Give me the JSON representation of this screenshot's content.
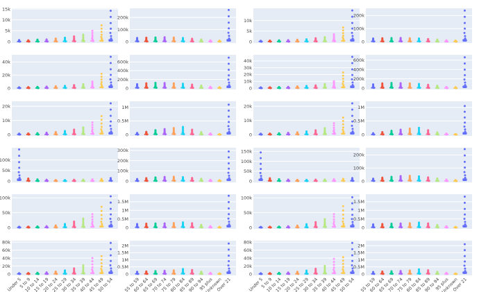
{
  "chart_data": {
    "type": "scatter",
    "grid": true,
    "layout_grid": {
      "rows": 6,
      "cols": 4
    },
    "colors": [
      "#636efa",
      "#EF553B",
      "#00cc96",
      "#ab63fa",
      "#FFA15A",
      "#19d3f3",
      "#FF6692",
      "#B6E880",
      "#FF97FF",
      "#FECB52"
    ],
    "x_groups": {
      "young": [
        "Under 5",
        "5 to 9",
        "10 to 14",
        "15 to 19",
        "20 to 24",
        "25 to 29",
        "30 to 34",
        "35 to 39",
        "40 to 44",
        "45 to 49",
        "50 to 54"
      ],
      "old": [
        "55 to 59",
        "60 to 64",
        "65 to 69",
        "70 to 74",
        "75 to 79",
        "80 to 84",
        "85 to 89",
        "90 to 94",
        "95 plus",
        "Unknown",
        "Over 21"
      ]
    },
    "panels": [
      {
        "group": "young",
        "ymax": 15000,
        "ticks": [
          {
            "v": 0,
            "t": "0"
          },
          {
            "v": 5000,
            "t": "5k"
          },
          {
            "v": 10000,
            "t": "10k"
          },
          {
            "v": 15000,
            "t": "15k"
          }
        ],
        "maxes": [
          700,
          600,
          900,
          1000,
          1400,
          1800,
          2400,
          3200,
          5000,
          7500,
          14200
        ]
      },
      {
        "group": "old",
        "ymax": 270000,
        "ticks": [
          {
            "v": 0,
            "t": "0"
          },
          {
            "v": 100000,
            "t": "100k"
          },
          {
            "v": 200000,
            "t": "200k"
          }
        ],
        "maxes": [
          30000,
          32000,
          34000,
          36000,
          34000,
          30000,
          24000,
          18000,
          10000,
          8000,
          262000
        ]
      },
      {
        "group": "young",
        "ymax": 15500,
        "ticks": [
          {
            "v": 0,
            "t": "0"
          },
          {
            "v": 5000,
            "t": "5k"
          },
          {
            "v": 10000,
            "t": "10k"
          }
        ],
        "maxes": [
          400,
          500,
          600,
          700,
          900,
          1100,
          1600,
          2100,
          3500,
          6700,
          14800
        ]
      },
      {
        "group": "old",
        "ymax": 250000,
        "ticks": [
          {
            "v": 0,
            "t": "0"
          },
          {
            "v": 100000,
            "t": "100k"
          },
          {
            "v": 200000,
            "t": "200k"
          }
        ],
        "maxes": [
          24000,
          26000,
          27000,
          28000,
          26000,
          24000,
          20000,
          16000,
          10000,
          8000,
          238000
        ]
      },
      {
        "group": "young",
        "ymax": 50000,
        "ticks": [
          {
            "v": 0,
            "t": "0"
          },
          {
            "v": 20000,
            "t": "20k"
          },
          {
            "v": 40000,
            "t": "40k"
          }
        ],
        "maxes": [
          1200,
          1500,
          1800,
          2200,
          2800,
          3400,
          4500,
          6000,
          10000,
          22000,
          48000
        ]
      },
      {
        "group": "old",
        "ymax": 750000,
        "ticks": [
          {
            "v": 0,
            "t": "0"
          },
          {
            "v": 200000,
            "t": "200k"
          },
          {
            "v": 400000,
            "t": "400k"
          },
          {
            "v": 600000,
            "t": "600k"
          }
        ],
        "maxes": [
          90000,
          110000,
          120000,
          115000,
          110000,
          100000,
          80000,
          60000,
          30000,
          20000,
          700000
        ]
      },
      {
        "group": "young",
        "ymax": 48000,
        "ticks": [
          {
            "v": 0,
            "t": "0"
          },
          {
            "v": 10000,
            "t": "10k"
          },
          {
            "v": 20000,
            "t": "20k"
          },
          {
            "v": 30000,
            "t": "30k"
          },
          {
            "v": 40000,
            "t": "40k"
          }
        ],
        "maxes": [
          1000,
          1200,
          1500,
          1800,
          2500,
          3200,
          4000,
          6000,
          10000,
          23000,
          46000
        ]
      },
      {
        "group": "old",
        "ymax": 700000,
        "ticks": [
          {
            "v": 0,
            "t": "0"
          },
          {
            "v": 200000,
            "t": "200k"
          },
          {
            "v": 400000,
            "t": "400k"
          },
          {
            "v": 600000,
            "t": "600k"
          }
        ],
        "maxes": [
          80000,
          100000,
          110000,
          105000,
          100000,
          90000,
          70000,
          50000,
          25000,
          18000,
          660000
        ]
      },
      {
        "group": "young",
        "ymax": 23000,
        "ticks": [
          {
            "v": 0,
            "t": "0"
          },
          {
            "v": 10000,
            "t": "10k"
          },
          {
            "v": 20000,
            "t": "20k"
          }
        ],
        "maxes": [
          700,
          800,
          1000,
          1300,
          1800,
          2500,
          3500,
          5000,
          8500,
          13000,
          22000
        ]
      },
      {
        "group": "old",
        "ymax": 1200000,
        "ticks": [
          {
            "v": 0,
            "t": "0"
          },
          {
            "v": 500000,
            "t": "0.5M"
          },
          {
            "v": 1000000,
            "t": "1M"
          }
        ],
        "maxes": [
          60000,
          100000,
          160000,
          200000,
          240000,
          280000,
          180000,
          90000,
          40000,
          20000,
          1100000
        ]
      },
      {
        "group": "young",
        "ymax": 23000,
        "ticks": [
          {
            "v": 0,
            "t": "0"
          },
          {
            "v": 10000,
            "t": "10k"
          },
          {
            "v": 20000,
            "t": "20k"
          }
        ],
        "maxes": [
          600,
          700,
          900,
          1200,
          1600,
          2200,
          3000,
          4500,
          8000,
          12000,
          22000
        ]
      },
      {
        "group": "old",
        "ymax": 1200000,
        "ticks": [
          {
            "v": 0,
            "t": "0"
          },
          {
            "v": 500000,
            "t": "0.5M"
          },
          {
            "v": 1000000,
            "t": "1M"
          }
        ],
        "maxes": [
          50000,
          90000,
          140000,
          180000,
          220000,
          250000,
          160000,
          80000,
          35000,
          20000,
          1050000
        ]
      },
      {
        "group": "young",
        "ymax": 155000,
        "ticks": [
          {
            "v": 0,
            "t": "0"
          },
          {
            "v": 50000,
            "t": "50k"
          },
          {
            "v": 100000,
            "t": "100k"
          }
        ],
        "maxes": [
          150000,
          12000,
          8000,
          6000,
          5000,
          5000,
          6000,
          7000,
          8000,
          10000,
          14000
        ]
      },
      {
        "group": "old",
        "ymax": 320000,
        "ticks": [
          {
            "v": 0,
            "t": "0"
          },
          {
            "v": 100000,
            "t": "100k"
          },
          {
            "v": 200000,
            "t": "200k"
          },
          {
            "v": 300000,
            "t": "300k"
          }
        ],
        "maxes": [
          20000,
          28000,
          35000,
          40000,
          42000,
          38000,
          30000,
          22000,
          12000,
          8000,
          290000
        ]
      },
      {
        "group": "young",
        "ymax": 165000,
        "ticks": [
          {
            "v": 0,
            "t": "0"
          },
          {
            "v": 50000,
            "t": "50k"
          },
          {
            "v": 100000,
            "t": "100k"
          },
          {
            "v": 150000,
            "t": "150k"
          }
        ],
        "maxes": [
          145000,
          14000,
          9000,
          7000,
          6000,
          6000,
          7000,
          8000,
          9000,
          11000,
          15000
        ]
      },
      {
        "group": "old",
        "ymax": 250000,
        "ticks": [
          {
            "v": 0,
            "t": "0"
          },
          {
            "v": 100000,
            "t": "100k"
          },
          {
            "v": 200000,
            "t": "200k"
          }
        ],
        "maxes": [
          18000,
          26000,
          32000,
          38000,
          40000,
          36000,
          28000,
          20000,
          11000,
          7000,
          245000
        ]
      },
      {
        "group": "young",
        "ymax": 110000,
        "ticks": [
          {
            "v": 0,
            "t": "0"
          },
          {
            "v": 50000,
            "t": "50k"
          },
          {
            "v": 100000,
            "t": "100k"
          }
        ],
        "maxes": [
          2500,
          3000,
          3500,
          4500,
          7000,
          12000,
          20000,
          30000,
          45000,
          70000,
          105000
        ]
      },
      {
        "group": "old",
        "ymax": 1900000,
        "ticks": [
          {
            "v": 0,
            "t": "0"
          },
          {
            "v": 500000,
            "t": "0.5M"
          },
          {
            "v": 1000000,
            "t": "1M"
          },
          {
            "v": 1500000,
            "t": "1.5M"
          }
        ],
        "maxes": [
          200000,
          220000,
          230000,
          240000,
          260000,
          300000,
          250000,
          150000,
          80000,
          40000,
          1850000
        ]
      },
      {
        "group": "young",
        "ymax": 110000,
        "ticks": [
          {
            "v": 0,
            "t": "0"
          },
          {
            "v": 50000,
            "t": "50k"
          },
          {
            "v": 100000,
            "t": "100k"
          }
        ],
        "maxes": [
          2000,
          2500,
          3000,
          4000,
          6500,
          11000,
          18000,
          28000,
          45000,
          72000,
          102000
        ]
      },
      {
        "group": "old",
        "ymax": 1900000,
        "ticks": [
          {
            "v": 0,
            "t": "0"
          },
          {
            "v": 500000,
            "t": "0.5M"
          },
          {
            "v": 1000000,
            "t": "1M"
          },
          {
            "v": 1500000,
            "t": "1.5M"
          }
        ],
        "maxes": [
          180000,
          200000,
          220000,
          230000,
          250000,
          290000,
          240000,
          140000,
          70000,
          35000,
          1800000
        ]
      },
      {
        "group": "young",
        "ymax": 82000,
        "ticks": [
          {
            "v": 0,
            "t": "0"
          },
          {
            "v": 20000,
            "t": "20k"
          },
          {
            "v": 40000,
            "t": "40k"
          },
          {
            "v": 60000,
            "t": "60k"
          },
          {
            "v": 80000,
            "t": "80k"
          }
        ],
        "maxes": [
          2000,
          2500,
          3000,
          4000,
          6000,
          9000,
          14000,
          22000,
          40000,
          45000,
          78000
        ]
      },
      {
        "group": "old",
        "ymax": 2300000,
        "ticks": [
          {
            "v": 0,
            "t": "0"
          },
          {
            "v": 500000,
            "t": "0.5M"
          },
          {
            "v": 1000000,
            "t": "1M"
          },
          {
            "v": 1500000,
            "t": "1.5M"
          },
          {
            "v": 2000000,
            "t": "2M"
          }
        ],
        "maxes": [
          150000,
          180000,
          200000,
          220000,
          250000,
          350000,
          280000,
          160000,
          80000,
          40000,
          2150000
        ]
      },
      {
        "group": "young",
        "ymax": 82000,
        "ticks": [
          {
            "v": 0,
            "t": "0"
          },
          {
            "v": 20000,
            "t": "20k"
          },
          {
            "v": 40000,
            "t": "40k"
          },
          {
            "v": 60000,
            "t": "60k"
          },
          {
            "v": 80000,
            "t": "80k"
          }
        ],
        "maxes": [
          1800,
          2200,
          2800,
          3800,
          5500,
          8500,
          13000,
          20000,
          38000,
          42000,
          78000
        ]
      },
      {
        "group": "old",
        "ymax": 2300000,
        "ticks": [
          {
            "v": 0,
            "t": "0"
          },
          {
            "v": 500000,
            "t": "0.5M"
          },
          {
            "v": 1000000,
            "t": "1M"
          },
          {
            "v": 1500000,
            "t": "1.5M"
          },
          {
            "v": 2000000,
            "t": "2M"
          }
        ],
        "maxes": [
          140000,
          170000,
          190000,
          210000,
          240000,
          330000,
          260000,
          150000,
          75000,
          35000,
          2100000
        ]
      }
    ]
  }
}
